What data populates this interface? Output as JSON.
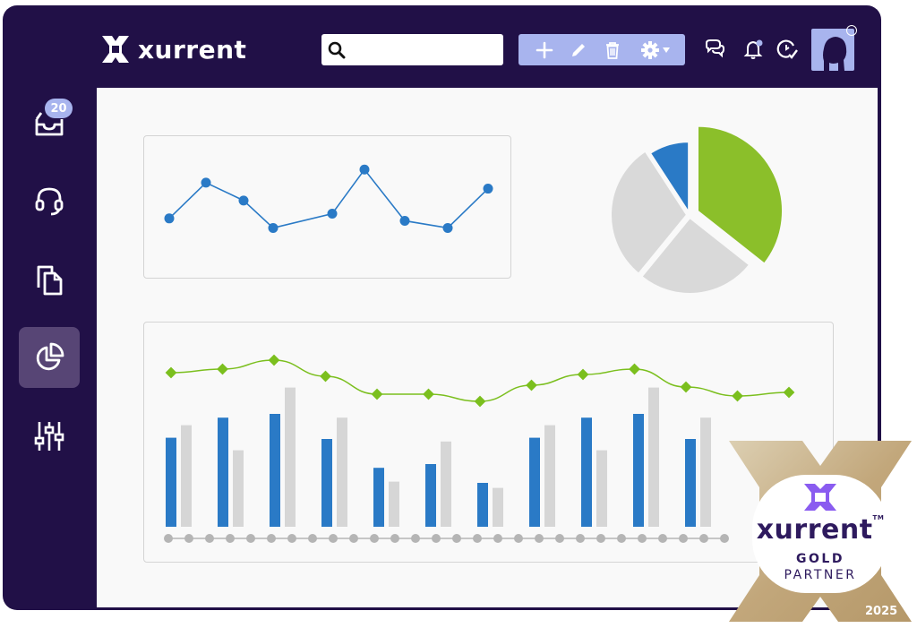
{
  "app": {
    "brand": "xurrent",
    "accent": "#211047",
    "toolbar_color": "#a8b4ee"
  },
  "header": {
    "search": {
      "placeholder": "",
      "value": "",
      "icon": "search-icon"
    },
    "toolbar_icons": [
      "plus-icon",
      "pencil-icon",
      "trash-icon",
      "gear-icon",
      "caret-down-icon"
    ],
    "right_icons": [
      "chat-icon",
      "bell-icon",
      "timer-check-icon"
    ],
    "avatar_icon": "user-silhouette-icon"
  },
  "sidebar": {
    "items": [
      {
        "icon": "inbox-icon",
        "badge": "20",
        "active": false
      },
      {
        "icon": "headset-icon",
        "active": false
      },
      {
        "icon": "copy-icon",
        "active": false
      },
      {
        "icon": "pie-chart-icon",
        "active": true
      },
      {
        "icon": "sliders-icon",
        "active": false
      }
    ]
  },
  "chart_data": [
    {
      "type": "line",
      "x": [
        1,
        2,
        3,
        4,
        5,
        6,
        7,
        8,
        9
      ],
      "series": [
        {
          "values": [
            4,
            7,
            5.5,
            3.2,
            4.4,
            8.1,
            3.8,
            3.2,
            6.5
          ],
          "color": "#2a7ac6"
        }
      ],
      "ylim": [
        0,
        10
      ],
      "grid": false
    },
    {
      "type": "pie",
      "slices": [
        {
          "value": 31,
          "color": "#8bbf2a",
          "exploded": true
        },
        {
          "value": 22,
          "color": "#d9d9d9"
        },
        {
          "value": 26,
          "color": "#d9d9d9"
        },
        {
          "value": 8,
          "color": "#2a7ac6"
        }
      ]
    },
    {
      "type": "bar",
      "categories": [
        "1",
        "2",
        "3",
        "4",
        "5",
        "6",
        "7",
        "8",
        "9",
        "10",
        "11",
        "12"
      ],
      "series": [
        {
          "color": "#2a7ac6",
          "values": [
            71,
            87,
            90,
            70,
            47,
            50,
            35,
            71,
            87,
            90,
            70,
            0
          ]
        },
        {
          "color": "#d6d6d6",
          "values": [
            81,
            61,
            111,
            87,
            36,
            68,
            31,
            81,
            61,
            111,
            87,
            0
          ]
        }
      ],
      "line_series": {
        "color": "#7bbf1e",
        "values": [
          8.6,
          8.8,
          9.3,
          8.4,
          7.4,
          7.4,
          7.0,
          7.9,
          8.5,
          8.8,
          7.8,
          7.3,
          7.5
        ]
      },
      "ylim": [
        0,
        120
      ],
      "grid": false
    }
  ],
  "partner_badge": {
    "brand": "xurrent",
    "tm": "TM",
    "tier": "GOLD",
    "label": "PARTNER",
    "year": "2025",
    "colors": {
      "gold": "#c7b088",
      "text": "#2e1a5e"
    }
  }
}
